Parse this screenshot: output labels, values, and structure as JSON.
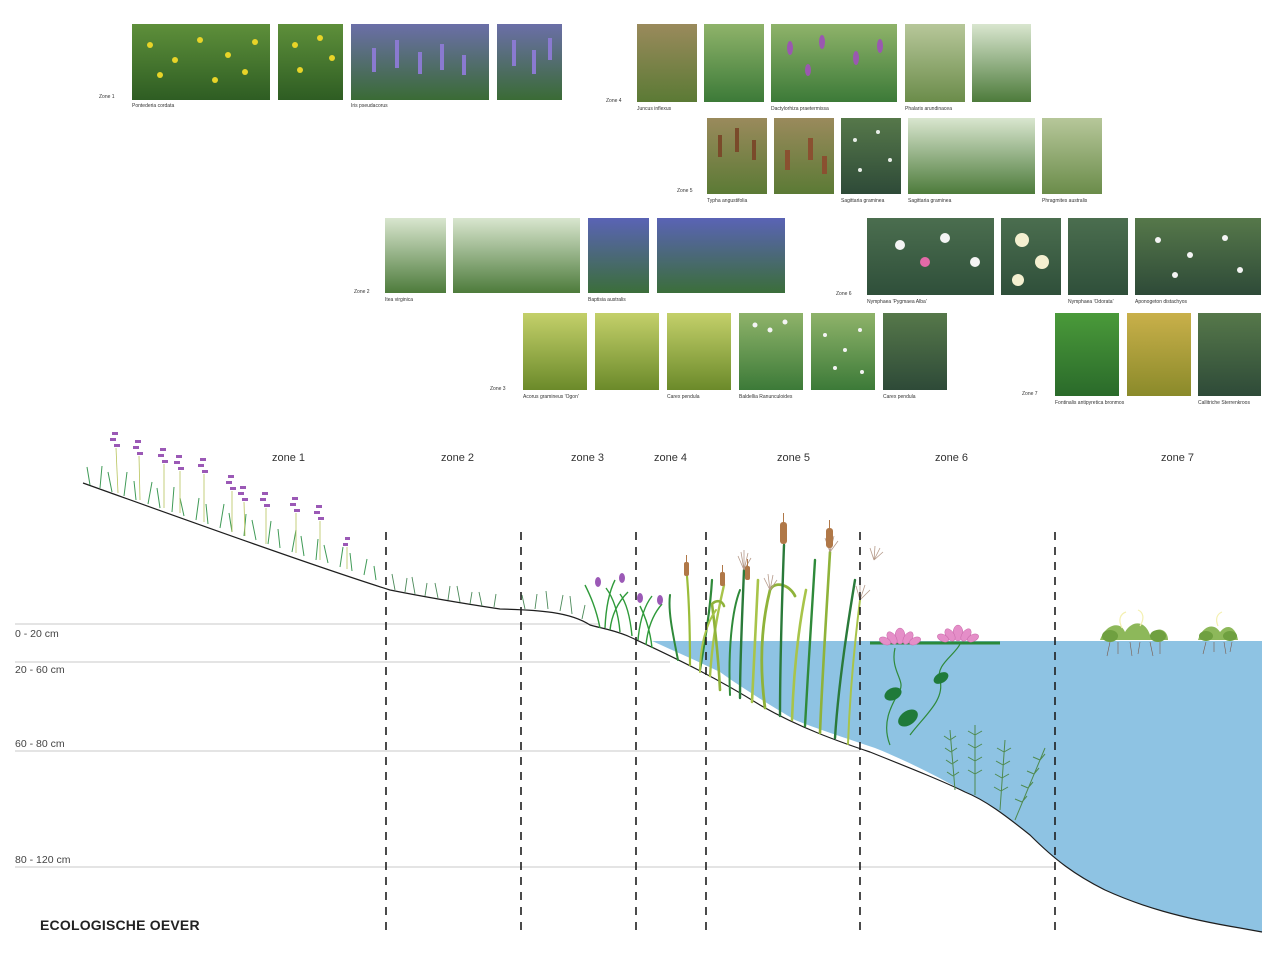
{
  "title": "ECOLOGISCHE OEVER",
  "zone_labels": [
    "zone 1",
    "zone 2",
    "zone 3",
    "zone 4",
    "zone 5",
    "zone 6",
    "zone 7"
  ],
  "depth_labels": [
    "0 - 20 cm",
    "20 - 60 cm",
    "60 - 80 cm",
    "80 - 120 cm"
  ],
  "plant_panels": [
    {
      "label": "Zone 1",
      "captions": [
        "Pontederia cordata",
        "Iris pseudacorus"
      ]
    },
    {
      "label": "Zone 2",
      "captions": [
        "Itea virginica",
        "Baptisia australis"
      ]
    },
    {
      "label": "Zone 3",
      "captions": [
        "Acorus gramineus 'Ogon'",
        "Carex pendula",
        "Baldellia Ranunculoides",
        "Carex pendula"
      ]
    },
    {
      "label": "Zone 4",
      "captions": [
        "Juncus inflexus",
        "Dactylorhiza praetermissa",
        "Phalaris arundinacea"
      ]
    },
    {
      "label": "Zone 5",
      "captions": [
        "Typha angustifolia",
        "Sagittaria graminea",
        "Sagittaria graminea",
        "Phragmites australis"
      ]
    },
    {
      "label": "Zone 6",
      "captions": [
        "Nymphaea 'Pygmaea Alba'",
        "Nymphaea 'Odorata'",
        "Aponogeton distachyos"
      ]
    },
    {
      "label": "Zone 7",
      "captions": [
        "Fontinalis antipyretica bronmos",
        "Callitriche Sterrenkroos"
      ]
    }
  ],
  "colors": {
    "water": "#8ec3e3",
    "grass": "#3f9a56",
    "flower_purple": "#9b59b6",
    "lily_pink": "#e58ec8",
    "cattail": "#b07848"
  }
}
